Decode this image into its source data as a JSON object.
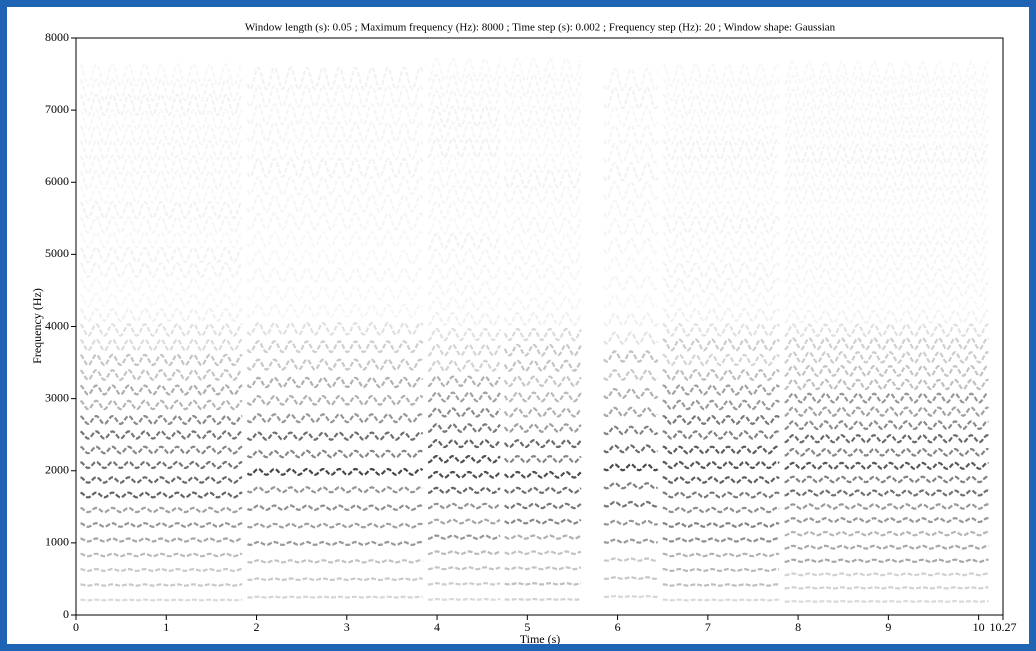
{
  "chart_data": {
    "type": "spectrogram",
    "title": "Window length (s): 0.05 ; Maximum frequency (Hz): 8000 ; Time step (s): 0.002 ; Frequency step (Hz): 20 ; Window shape: Gaussian",
    "x_label": "Time (s)",
    "y_label": "Frequency (Hz)",
    "xlim": [
      0,
      10.27
    ],
    "ylim": [
      0,
      8000
    ],
    "xticks": [
      0,
      1,
      2,
      3,
      4,
      5,
      6,
      7,
      8,
      9,
      10,
      10.27
    ],
    "yticks": [
      0,
      1000,
      2000,
      3000,
      4000,
      5000,
      6000,
      7000,
      8000
    ],
    "color": "#000000"
  }
}
